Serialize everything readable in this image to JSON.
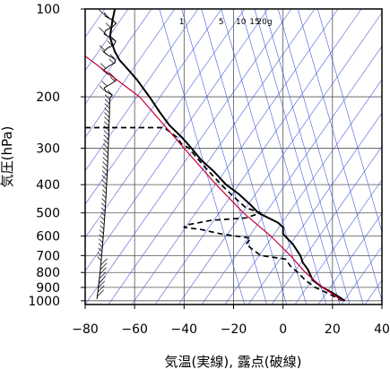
{
  "chart_data": {
    "type": "line",
    "subtype": "skew-t log-p (emagram) upper-air sounding",
    "xlabel": "気温(実線), 露点(破線)",
    "ylabel": "気圧(hPa)",
    "xlim": [
      -80,
      40
    ],
    "ylim": [
      1030,
      100
    ],
    "yscale": "log",
    "x_ticks": [
      -80,
      -60,
      -40,
      -20,
      0,
      20,
      40
    ],
    "x_tick_labels": [
      "−80",
      "−60",
      "−40",
      "−20",
      "0",
      "20",
      "40"
    ],
    "y_ticks": [
      100,
      200,
      300,
      400,
      500,
      600,
      700,
      800,
      900,
      1000
    ],
    "y_tick_labels": [
      "100",
      "200",
      "300",
      "400",
      "500",
      "600",
      "700",
      "800",
      "900",
      "1000"
    ],
    "grid": true,
    "mixing_ratio_labels": [
      {
        "text": "1",
        "x": -41
      },
      {
        "text": "5",
        "x": -25
      },
      {
        "text": "10",
        "x": -17
      },
      {
        "text": "15",
        "x": -11.5
      },
      {
        "text": "20g",
        "x": -7.5
      }
    ],
    "series": [
      {
        "role": "temperature",
        "style": "solid",
        "color": "#000000",
        "points": [
          {
            "p": 100,
            "t": -68
          },
          {
            "p": 110,
            "t": -69
          },
          {
            "p": 125,
            "t": -70
          },
          {
            "p": 140,
            "t": -68
          },
          {
            "p": 150,
            "t": -66
          },
          {
            "p": 160,
            "t": -63
          },
          {
            "p": 175,
            "t": -59
          },
          {
            "p": 200,
            "t": -54
          },
          {
            "p": 225,
            "t": -50
          },
          {
            "p": 250,
            "t": -46
          },
          {
            "p": 275,
            "t": -41
          },
          {
            "p": 300,
            "t": -37
          },
          {
            "p": 330,
            "t": -33
          },
          {
            "p": 360,
            "t": -28
          },
          {
            "p": 400,
            "t": -23
          },
          {
            "p": 430,
            "t": -18
          },
          {
            "p": 470,
            "t": -13
          },
          {
            "p": 500,
            "t": -10
          },
          {
            "p": 540,
            "t": -2
          },
          {
            "p": 560,
            "t": 0
          },
          {
            "p": 590,
            "t": 0
          },
          {
            "p": 640,
            "t": 4
          },
          {
            "p": 700,
            "t": 7
          },
          {
            "p": 740,
            "t": 8
          },
          {
            "p": 780,
            "t": 10
          },
          {
            "p": 850,
            "t": 12
          },
          {
            "p": 900,
            "t": 16
          },
          {
            "p": 950,
            "t": 21
          },
          {
            "p": 1000,
            "t": 25
          }
        ]
      },
      {
        "role": "dewpoint",
        "style": "dashed",
        "color": "#000000",
        "points": [
          {
            "p": 255,
            "t": -80
          },
          {
            "p": 255,
            "t": -48
          },
          {
            "p": 275,
            "t": -43
          },
          {
            "p": 290,
            "t": -41
          },
          {
            "p": 300,
            "t": -38
          },
          {
            "p": 330,
            "t": -34
          },
          {
            "p": 360,
            "t": -30
          },
          {
            "p": 400,
            "t": -25
          },
          {
            "p": 440,
            "t": -20
          },
          {
            "p": 480,
            "t": -15
          },
          {
            "p": 500,
            "t": -9
          },
          {
            "p": 520,
            "t": -15
          },
          {
            "p": 530,
            "t": -29
          },
          {
            "p": 550,
            "t": -39
          },
          {
            "p": 560,
            "t": -40
          },
          {
            "p": 570,
            "t": -33
          },
          {
            "p": 590,
            "t": -25
          },
          {
            "p": 610,
            "t": -13
          },
          {
            "p": 640,
            "t": -15
          },
          {
            "p": 670,
            "t": -12
          },
          {
            "p": 690,
            "t": -10
          },
          {
            "p": 700,
            "t": -9
          },
          {
            "p": 720,
            "t": 1
          },
          {
            "p": 760,
            "t": 3
          },
          {
            "p": 800,
            "t": 6
          },
          {
            "p": 850,
            "t": 9
          },
          {
            "p": 900,
            "t": 13
          },
          {
            "p": 950,
            "t": 19
          },
          {
            "p": 1000,
            "t": 24
          }
        ]
      },
      {
        "role": "moist adiabat / parcel path",
        "style": "solid",
        "color": "#c8003c",
        "points": [
          {
            "p": 145,
            "t": -80
          },
          {
            "p": 200,
            "t": -58
          },
          {
            "p": 300,
            "t": -40
          },
          {
            "p": 400,
            "t": -27
          },
          {
            "p": 500,
            "t": -16
          },
          {
            "p": 600,
            "t": -5
          },
          {
            "p": 700,
            "t": 3
          },
          {
            "p": 800,
            "t": 9
          },
          {
            "p": 900,
            "t": 16
          },
          {
            "p": 1000,
            "t": 24
          }
        ]
      }
    ]
  }
}
